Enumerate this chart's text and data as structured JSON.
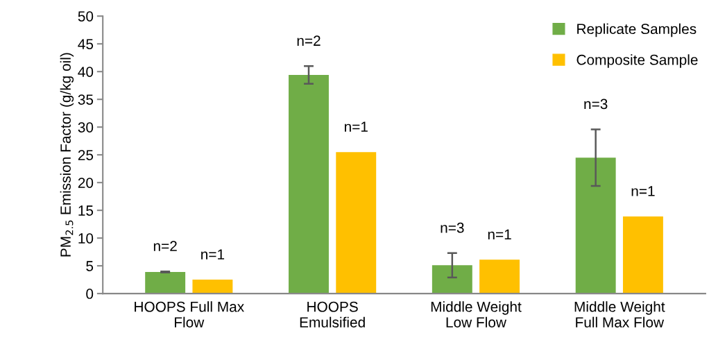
{
  "chart_data": {
    "type": "bar",
    "ylabel": "PM$_{2.5}$ Emission Factor (g/kg oil)",
    "categories": [
      "HOOPS Full Max\nFlow",
      "HOOPS\nEmulsified",
      "Middle Weight\nLow Flow",
      "Middle Weight\nFull Max Flow"
    ],
    "series": [
      {
        "name": "Replicate Samples",
        "color": "#70ad47",
        "values": [
          3.9,
          39.4,
          5.1,
          24.5
        ],
        "errors": [
          0.1,
          1.6,
          2.2,
          5.1
        ]
      },
      {
        "name": "Composite Sample",
        "color": "#ffc000",
        "values": [
          2.5,
          25.5,
          6.1,
          13.9
        ]
      }
    ],
    "annotations": [
      "n=2",
      "n=1",
      "n=2",
      "n=1",
      "n=3",
      "n=1",
      "n=3",
      "n=1"
    ],
    "ylim": [
      0,
      50
    ],
    "yticks": [
      0,
      5,
      10,
      15,
      20,
      25,
      30,
      35,
      40,
      45,
      50
    ],
    "legend": "top right",
    "grid": false
  }
}
